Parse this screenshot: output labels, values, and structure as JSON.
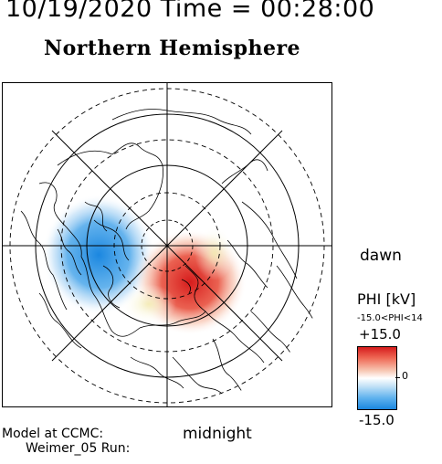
{
  "header": {
    "time": "10/19/2020 Time = 00:28:00",
    "title": "Northern Hemisphere"
  },
  "labels": {
    "dawn": "dawn",
    "midnight": "midnight"
  },
  "model": {
    "line1": "Model at CCMC:",
    "line2": "Weimer_05 Run:"
  },
  "colorbar": {
    "title": "PHI [kV]",
    "range_text": "-15.0<PHI<14",
    "max_label": "+15.0",
    "zero_label": "0",
    "min_label": "-15.0",
    "min_value": -15.0,
    "max_value": 15.0,
    "colors": {
      "positive": "#d61c1c",
      "neutral": "#ffffff",
      "negative": "#1b87e0"
    }
  },
  "map": {
    "projection": "polar",
    "grid_lines": "on",
    "potential_cells": [
      {
        "polarity": "negative",
        "location": "dusk side"
      },
      {
        "polarity": "positive",
        "location": "dawn side"
      }
    ]
  }
}
